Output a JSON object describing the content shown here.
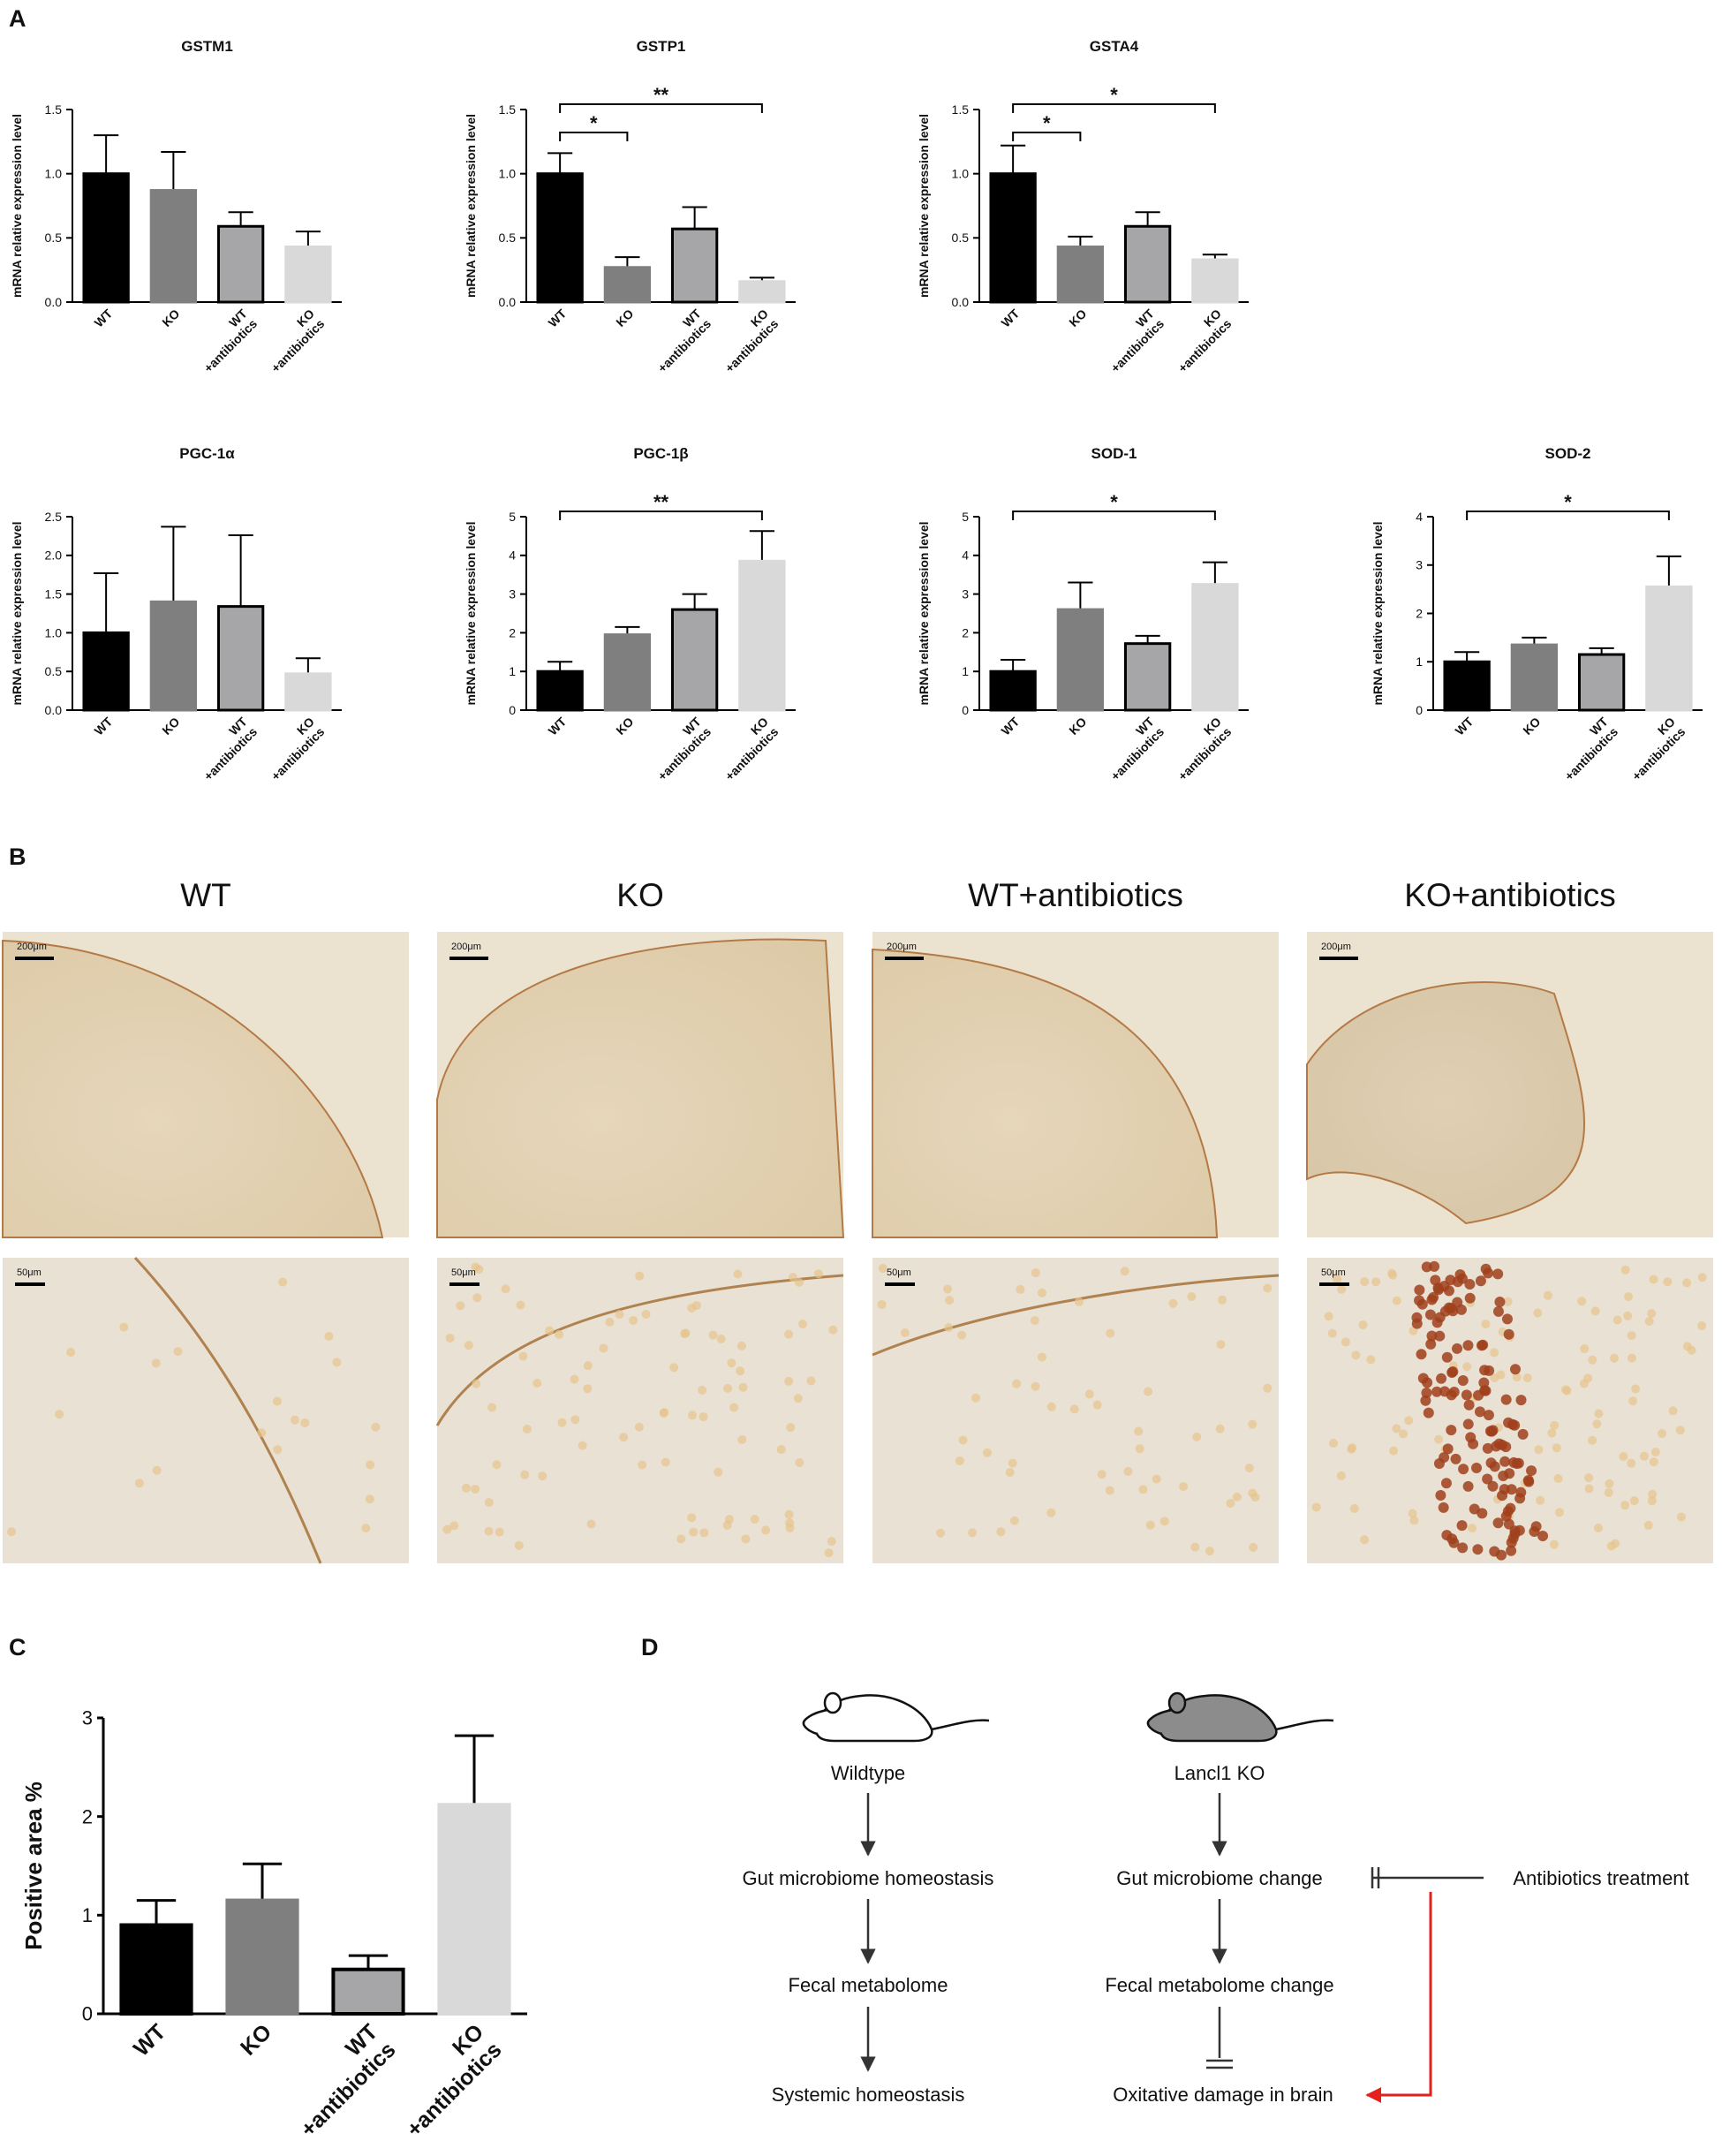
{
  "panel_labels": [
    "A",
    "B",
    "C",
    "D"
  ],
  "chart_data": [
    {
      "type": "bar",
      "title": "GSTM1",
      "ylabel": "mRNA relative expression level",
      "categories": [
        "WT",
        "KO",
        "WT\n+antibiotics",
        "KO\n+antibiotics"
      ],
      "values": [
        1.0,
        0.87,
        0.59,
        0.43
      ],
      "errors": [
        0.3,
        0.3,
        0.11,
        0.12
      ],
      "colors": [
        "#000000",
        "#7f7f7f",
        "#a6a6a8",
        "#d9d9d9"
      ],
      "edgecolors": [
        "#000000",
        "#7f7f7f",
        "#000000",
        "#d9d9d9"
      ],
      "ylim": [
        0,
        1.5
      ],
      "yticks": [
        {
          "value": 0,
          "label": "0.0"
        },
        {
          "value": 0.5,
          "label": "0.5"
        },
        {
          "value": 1,
          "label": "1.0"
        },
        {
          "value": 1.5,
          "label": "1.5"
        }
      ],
      "significance": []
    },
    {
      "type": "bar",
      "title": "GSTP1",
      "ylabel": "mRNA relative expression level",
      "categories": [
        "WT",
        "KO",
        "WT\n+antibiotics",
        "KO\n+antibiotics"
      ],
      "values": [
        1.0,
        0.27,
        0.57,
        0.16
      ],
      "errors": [
        0.16,
        0.08,
        0.17,
        0.03
      ],
      "colors": [
        "#000000",
        "#7f7f7f",
        "#a6a6a8",
        "#d9d9d9"
      ],
      "edgecolors": [
        "#000000",
        "#7f7f7f",
        "#000000",
        "#d9d9d9"
      ],
      "ylim": [
        0,
        1.5
      ],
      "yticks": [
        {
          "value": 0,
          "label": "0.0"
        },
        {
          "value": 0.5,
          "label": "0.5"
        },
        {
          "value": 1,
          "label": "1.0"
        },
        {
          "value": 1.5,
          "label": "1.5"
        }
      ],
      "significance": [
        {
          "pair": [
            0,
            1
          ],
          "label": "*"
        },
        {
          "pair": [
            0,
            3
          ],
          "label": "**"
        }
      ]
    },
    {
      "type": "bar",
      "title": "GSTA4",
      "ylabel": "mRNA relative expression level",
      "categories": [
        "WT",
        "KO",
        "WT\n+antibiotics",
        "KO\n+antibiotics"
      ],
      "values": [
        1.0,
        0.43,
        0.59,
        0.33
      ],
      "errors": [
        0.22,
        0.08,
        0.11,
        0.04
      ],
      "colors": [
        "#000000",
        "#7f7f7f",
        "#a6a6a8",
        "#d9d9d9"
      ],
      "edgecolors": [
        "#000000",
        "#7f7f7f",
        "#000000",
        "#d9d9d9"
      ],
      "ylim": [
        0,
        1.5
      ],
      "yticks": [
        {
          "value": 0,
          "label": "0.0"
        },
        {
          "value": 0.5,
          "label": "0.5"
        },
        {
          "value": 1,
          "label": "1.0"
        },
        {
          "value": 1.5,
          "label": "1.5"
        }
      ],
      "significance": [
        {
          "pair": [
            0,
            1
          ],
          "label": "*"
        },
        {
          "pair": [
            0,
            3
          ],
          "label": "*"
        }
      ]
    },
    {
      "type": "bar",
      "title": "PGC-1α",
      "ylabel": "mRNA relative expression level",
      "categories": [
        "WT",
        "KO",
        "WT\n+antibiotics",
        "KO\n+antibiotics"
      ],
      "values": [
        1.0,
        1.4,
        1.34,
        0.47
      ],
      "errors": [
        0.77,
        0.97,
        0.92,
        0.2
      ],
      "colors": [
        "#000000",
        "#7f7f7f",
        "#a6a6a8",
        "#d9d9d9"
      ],
      "edgecolors": [
        "#000000",
        "#7f7f7f",
        "#000000",
        "#d9d9d9"
      ],
      "ylim": [
        0,
        2.5
      ],
      "yticks": [
        {
          "value": 0,
          "label": "0.0"
        },
        {
          "value": 0.5,
          "label": "0.5"
        },
        {
          "value": 1,
          "label": "1.0"
        },
        {
          "value": 1.5,
          "label": "1.5"
        },
        {
          "value": 2,
          "label": "2.0"
        },
        {
          "value": 2.5,
          "label": "2.5"
        }
      ],
      "significance": []
    },
    {
      "type": "bar",
      "title": "PGC-1β",
      "ylabel": "mRNA relative expression level",
      "categories": [
        "WT",
        "KO",
        "WT\n+antibiotics",
        "KO\n+antibiotics"
      ],
      "values": [
        1.0,
        1.95,
        2.6,
        3.85
      ],
      "errors": [
        0.25,
        0.2,
        0.4,
        0.78
      ],
      "colors": [
        "#000000",
        "#7f7f7f",
        "#a6a6a8",
        "#d9d9d9"
      ],
      "edgecolors": [
        "#000000",
        "#7f7f7f",
        "#000000",
        "#d9d9d9"
      ],
      "ylim": [
        0,
        5
      ],
      "yticks": [
        0,
        1,
        2,
        3,
        4,
        5
      ],
      "significance": [
        {
          "pair": [
            0,
            3
          ],
          "label": "**"
        }
      ]
    },
    {
      "type": "bar",
      "title": "SOD-1",
      "ylabel": "mRNA relative expression level",
      "categories": [
        "WT",
        "KO",
        "WT\n+antibiotics",
        "KO\n+antibiotics"
      ],
      "values": [
        1.0,
        2.6,
        1.72,
        3.25
      ],
      "errors": [
        0.3,
        0.7,
        0.2,
        0.57
      ],
      "colors": [
        "#000000",
        "#7f7f7f",
        "#a6a6a8",
        "#d9d9d9"
      ],
      "edgecolors": [
        "#000000",
        "#7f7f7f",
        "#000000",
        "#d9d9d9"
      ],
      "ylim": [
        0,
        5
      ],
      "yticks": [
        0,
        1,
        2,
        3,
        4,
        5
      ],
      "significance": [
        {
          "pair": [
            0,
            3
          ],
          "label": "*"
        }
      ]
    },
    {
      "type": "bar",
      "title": "SOD-2",
      "ylabel": "mRNA relative expression level",
      "categories": [
        "WT",
        "KO",
        "WT\n+antibiotics",
        "KO\n+antibiotics"
      ],
      "values": [
        1.0,
        1.35,
        1.15,
        2.55
      ],
      "errors": [
        0.2,
        0.15,
        0.13,
        0.63
      ],
      "colors": [
        "#000000",
        "#7f7f7f",
        "#a6a6a8",
        "#d9d9d9"
      ],
      "edgecolors": [
        "#000000",
        "#7f7f7f",
        "#000000",
        "#d9d9d9"
      ],
      "ylim": [
        0,
        4
      ],
      "yticks": [
        0,
        1,
        2,
        3,
        4
      ],
      "significance": [
        {
          "pair": [
            0,
            3
          ],
          "label": "*"
        }
      ]
    },
    {
      "type": "bar",
      "ylabel": "Positive area %",
      "categories": [
        "WT",
        "KO",
        "WT\n+antibiotics",
        "KO\n+antibiotics"
      ],
      "values": [
        0.9,
        1.15,
        0.45,
        2.12
      ],
      "errors": [
        0.25,
        0.37,
        0.14,
        0.7
      ],
      "colors": [
        "#000000",
        "#7f7f7f",
        "#a6a6a8",
        "#d9d9d9"
      ],
      "edgecolors": [
        "#000000",
        "#7f7f7f",
        "#000000",
        "#d9d9d9"
      ],
      "ylim": [
        0,
        3
      ],
      "yticks": [
        0,
        1,
        2,
        3
      ],
      "significance": []
    }
  ],
  "micrographs": {
    "columns": [
      "WT",
      "KO",
      "WT+antibiotics",
      "KO+antibiotics"
    ],
    "scale_bars": [
      "200μm",
      "50μm"
    ]
  },
  "diagram": {
    "wildtype": [
      "Wildtype",
      "Gut microbiome homeostasis",
      "Fecal metabolome",
      "Systemic homeostasis"
    ],
    "knockout": [
      "Lancl1 KO",
      "Gut microbiome change",
      "Fecal metabolome change",
      "Oxitative damage in brain"
    ],
    "treatment": "Antibiotics treatment"
  }
}
